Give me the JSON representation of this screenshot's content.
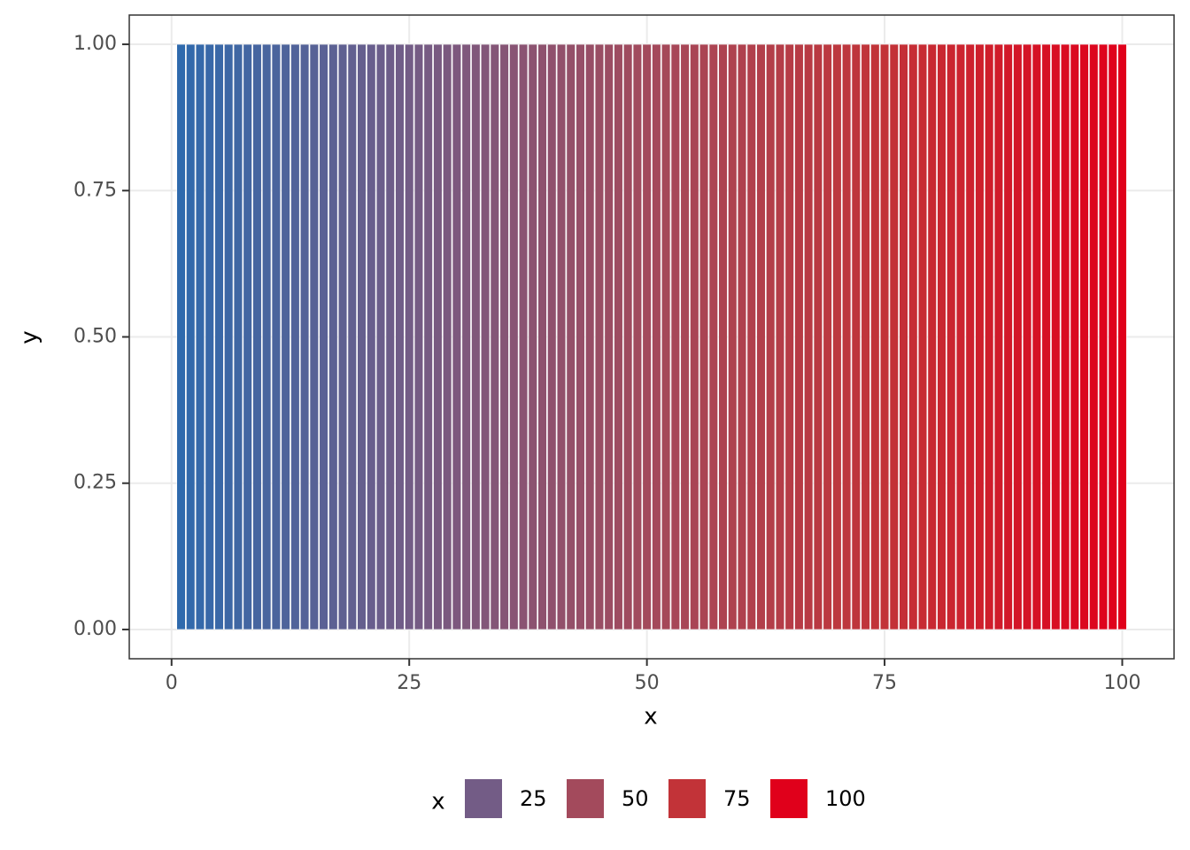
{
  "chart_data": {
    "type": "bar",
    "x_label": "x",
    "y_label": "y",
    "x": [
      1,
      2,
      3,
      4,
      5,
      6,
      7,
      8,
      9,
      10,
      11,
      12,
      13,
      14,
      15,
      16,
      17,
      18,
      19,
      20,
      21,
      22,
      23,
      24,
      25,
      26,
      27,
      28,
      29,
      30,
      31,
      32,
      33,
      34,
      35,
      36,
      37,
      38,
      39,
      40,
      41,
      42,
      43,
      44,
      45,
      46,
      47,
      48,
      49,
      50,
      51,
      52,
      53,
      54,
      55,
      56,
      57,
      58,
      59,
      60,
      61,
      62,
      63,
      64,
      65,
      66,
      67,
      68,
      69,
      70,
      71,
      72,
      73,
      74,
      75,
      76,
      77,
      78,
      79,
      80,
      81,
      82,
      83,
      84,
      85,
      86,
      87,
      88,
      89,
      90,
      91,
      92,
      93,
      94,
      95,
      96,
      97,
      98,
      99,
      100
    ],
    "values": [
      1,
      1,
      1,
      1,
      1,
      1,
      1,
      1,
      1,
      1,
      1,
      1,
      1,
      1,
      1,
      1,
      1,
      1,
      1,
      1,
      1,
      1,
      1,
      1,
      1,
      1,
      1,
      1,
      1,
      1,
      1,
      1,
      1,
      1,
      1,
      1,
      1,
      1,
      1,
      1,
      1,
      1,
      1,
      1,
      1,
      1,
      1,
      1,
      1,
      1,
      1,
      1,
      1,
      1,
      1,
      1,
      1,
      1,
      1,
      1,
      1,
      1,
      1,
      1,
      1,
      1,
      1,
      1,
      1,
      1,
      1,
      1,
      1,
      1,
      1,
      1,
      1,
      1,
      1,
      1,
      1,
      1,
      1,
      1,
      1,
      1,
      1,
      1,
      1,
      1,
      1,
      1,
      1,
      1,
      1,
      1,
      1,
      1,
      1,
      1
    ],
    "color_low": "#2f6aad",
    "xlim": [
      -4.45,
      105.45
    ],
    "ylim": [
      -0.05,
      1.05
    ],
    "xticks": [
      0,
      25,
      50,
      75,
      100
    ],
    "yticks": [
      {
        "value": 0,
        "label": "0.00"
      },
      {
        "value": 0.25,
        "label": "0.25"
      },
      {
        "value": 0.5,
        "label": "0.50"
      },
      {
        "value": 0.75,
        "label": "0.75"
      },
      {
        "value": 1,
        "label": "1.00"
      }
    ],
    "grid": true,
    "legend_position": "bottom",
    "legend": {
      "title": "x",
      "breaks": [
        25,
        50,
        75,
        100
      ],
      "colors": [
        "#735c86",
        "#a34a5c",
        "#c23338",
        "#e0001b"
      ]
    }
  }
}
